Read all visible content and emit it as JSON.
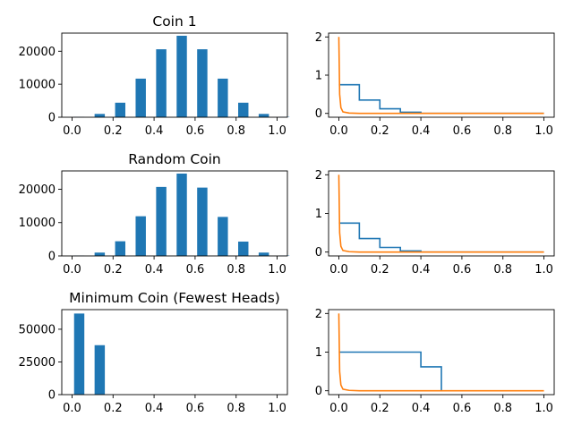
{
  "figure": {
    "title_colors": {
      "bar": "#1f77b4",
      "blue_line": "#1f77b4",
      "orange_line": "#ff7f0e"
    }
  },
  "chart_data": [
    {
      "type": "bar",
      "title": "Coin 1",
      "xlim": [
        -0.05,
        1.05
      ],
      "ylim": [
        0,
        25500
      ],
      "xticks": [
        0.0,
        0.2,
        0.4,
        0.6,
        0.8,
        1.0
      ],
      "xtick_labels": [
        "0.0",
        "0.2",
        "0.4",
        "0.6",
        "0.8",
        "1.0"
      ],
      "yticks": [
        0,
        10000,
        20000
      ],
      "ytick_labels": [
        "0",
        "10000",
        "20000"
      ],
      "bins": [
        0.0,
        0.1,
        0.2,
        0.3,
        0.4,
        0.5,
        0.6,
        0.7,
        0.8,
        0.9,
        1.0
      ],
      "values": [
        100,
        1000,
        4400,
        11700,
        20600,
        24700,
        20600,
        11700,
        4400,
        1000,
        100
      ]
    },
    {
      "type": "line",
      "title": "",
      "xlim": [
        -0.05,
        1.05
      ],
      "ylim": [
        -0.1,
        2.1
      ],
      "xticks": [
        0.0,
        0.2,
        0.4,
        0.6,
        0.8,
        1.0
      ],
      "xtick_labels": [
        "0.0",
        "0.2",
        "0.4",
        "0.6",
        "0.8",
        "1.0"
      ],
      "yticks": [
        0,
        1,
        2
      ],
      "ytick_labels": [
        "0",
        "1",
        "2"
      ],
      "series": [
        {
          "color": "#1f77b4",
          "step": true,
          "x": [
            0.0,
            0.0,
            0.1,
            0.1,
            0.2,
            0.2,
            0.3,
            0.3,
            0.4,
            0.4,
            1.0
          ],
          "y": [
            0.75,
            0.75,
            0.75,
            0.35,
            0.35,
            0.12,
            0.12,
            0.03,
            0.03,
            0.0,
            0.0
          ]
        },
        {
          "color": "#ff7f0e",
          "step": false,
          "x": [
            0.0,
            0.004,
            0.01,
            0.02,
            0.05,
            0.1,
            1.0
          ],
          "y": [
            2.0,
            0.5,
            0.15,
            0.04,
            0.01,
            0.0,
            0.0
          ]
        }
      ]
    },
    {
      "type": "bar",
      "title": "Random Coin",
      "xlim": [
        -0.05,
        1.05
      ],
      "ylim": [
        0,
        25500
      ],
      "xticks": [
        0.0,
        0.2,
        0.4,
        0.6,
        0.8,
        1.0
      ],
      "xtick_labels": [
        "0.0",
        "0.2",
        "0.4",
        "0.6",
        "0.8",
        "1.0"
      ],
      "yticks": [
        0,
        10000,
        20000
      ],
      "ytick_labels": [
        "0",
        "10000",
        "20000"
      ],
      "bins": [
        0.0,
        0.1,
        0.2,
        0.3,
        0.4,
        0.5,
        0.6,
        0.7,
        0.8,
        0.9,
        1.0
      ],
      "values": [
        100,
        1000,
        4400,
        11900,
        20700,
        24700,
        20500,
        11700,
        4300,
        1000,
        100
      ]
    },
    {
      "type": "line",
      "title": "",
      "xlim": [
        -0.05,
        1.05
      ],
      "ylim": [
        -0.1,
        2.1
      ],
      "xticks": [
        0.0,
        0.2,
        0.4,
        0.6,
        0.8,
        1.0
      ],
      "xtick_labels": [
        "0.0",
        "0.2",
        "0.4",
        "0.6",
        "0.8",
        "1.0"
      ],
      "yticks": [
        0,
        1,
        2
      ],
      "ytick_labels": [
        "0",
        "1",
        "2"
      ],
      "series": [
        {
          "color": "#1f77b4",
          "step": true,
          "x": [
            0.0,
            0.0,
            0.1,
            0.1,
            0.2,
            0.2,
            0.3,
            0.3,
            0.4,
            0.4,
            1.0
          ],
          "y": [
            0.75,
            0.75,
            0.75,
            0.35,
            0.35,
            0.12,
            0.12,
            0.03,
            0.03,
            0.0,
            0.0
          ]
        },
        {
          "color": "#ff7f0e",
          "step": false,
          "x": [
            0.0,
            0.004,
            0.01,
            0.02,
            0.05,
            0.1,
            1.0
          ],
          "y": [
            2.0,
            0.5,
            0.15,
            0.04,
            0.01,
            0.0,
            0.0
          ]
        }
      ]
    },
    {
      "type": "bar",
      "title": "Minimum Coin (Fewest Heads)",
      "xlim": [
        -0.05,
        1.05
      ],
      "ylim": [
        0,
        65000
      ],
      "xticks": [
        0.0,
        0.2,
        0.4,
        0.6,
        0.8,
        1.0
      ],
      "xtick_labels": [
        "0.0",
        "0.2",
        "0.4",
        "0.6",
        "0.8",
        "1.0"
      ],
      "yticks": [
        0,
        25000,
        50000
      ],
      "ytick_labels": [
        "0",
        "25000",
        "50000"
      ],
      "bins": [
        0.0,
        0.1
      ],
      "values": [
        62000,
        37800
      ]
    },
    {
      "type": "line",
      "title": "",
      "xlim": [
        -0.05,
        1.05
      ],
      "ylim": [
        -0.1,
        2.1
      ],
      "xticks": [
        0.0,
        0.2,
        0.4,
        0.6,
        0.8,
        1.0
      ],
      "xtick_labels": [
        "0.0",
        "0.2",
        "0.4",
        "0.6",
        "0.8",
        "1.0"
      ],
      "yticks": [
        0,
        1,
        2
      ],
      "ytick_labels": [
        "0",
        "1",
        "2"
      ],
      "series": [
        {
          "color": "#1f77b4",
          "step": true,
          "x": [
            0.0,
            0.0,
            0.4,
            0.4,
            0.5,
            0.5
          ],
          "y": [
            1.0,
            1.0,
            1.0,
            0.62,
            0.62,
            0.0
          ]
        },
        {
          "color": "#ff7f0e",
          "step": false,
          "x": [
            0.0,
            0.004,
            0.01,
            0.02,
            0.05,
            0.1,
            1.0
          ],
          "y": [
            2.0,
            0.5,
            0.15,
            0.04,
            0.01,
            0.0,
            0.0
          ]
        }
      ]
    }
  ]
}
